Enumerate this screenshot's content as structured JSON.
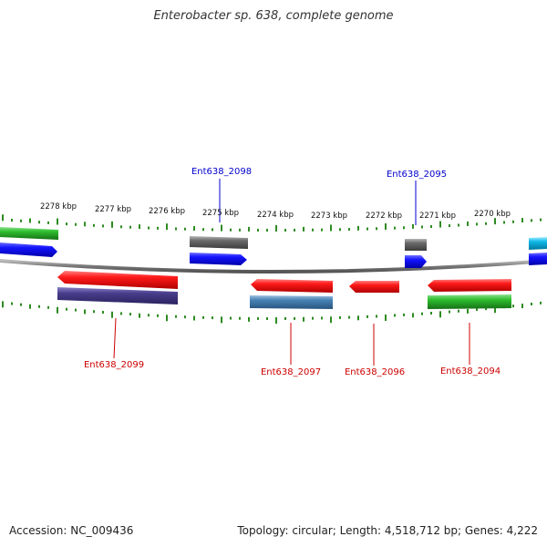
{
  "title": "Enterobacter sp. 638, complete genome",
  "footer": {
    "accession": "Accession: NC_009436",
    "stats": "Topology: circular; Length: 4,518,712 bp; Genes: 4,222"
  },
  "ruler_labels": [
    "2278 kbp",
    "2277 kbp",
    "2276 kbp",
    "2275 kbp",
    "2274 kbp",
    "2273 kbp",
    "2272 kbp",
    "2271 kbp",
    "2270 kbp"
  ],
  "gene_labels": [
    {
      "text": "Ent638_2098",
      "color": "#0000cc"
    },
    {
      "text": "Ent638_2095",
      "color": "#0000cc"
    },
    {
      "text": "Ent638_2099",
      "color": "#cc0000"
    },
    {
      "text": "Ent638_2097",
      "color": "#cc0000"
    },
    {
      "text": "Ent638_2096",
      "color": "#cc0000"
    },
    {
      "text": "Ent638_2094",
      "color": "#cc0000"
    }
  ],
  "colors": {
    "forward_cds": "#1010ff",
    "reverse_cds": "#ff1010",
    "tick": "#2e8b22",
    "backbone": "#888888"
  }
}
